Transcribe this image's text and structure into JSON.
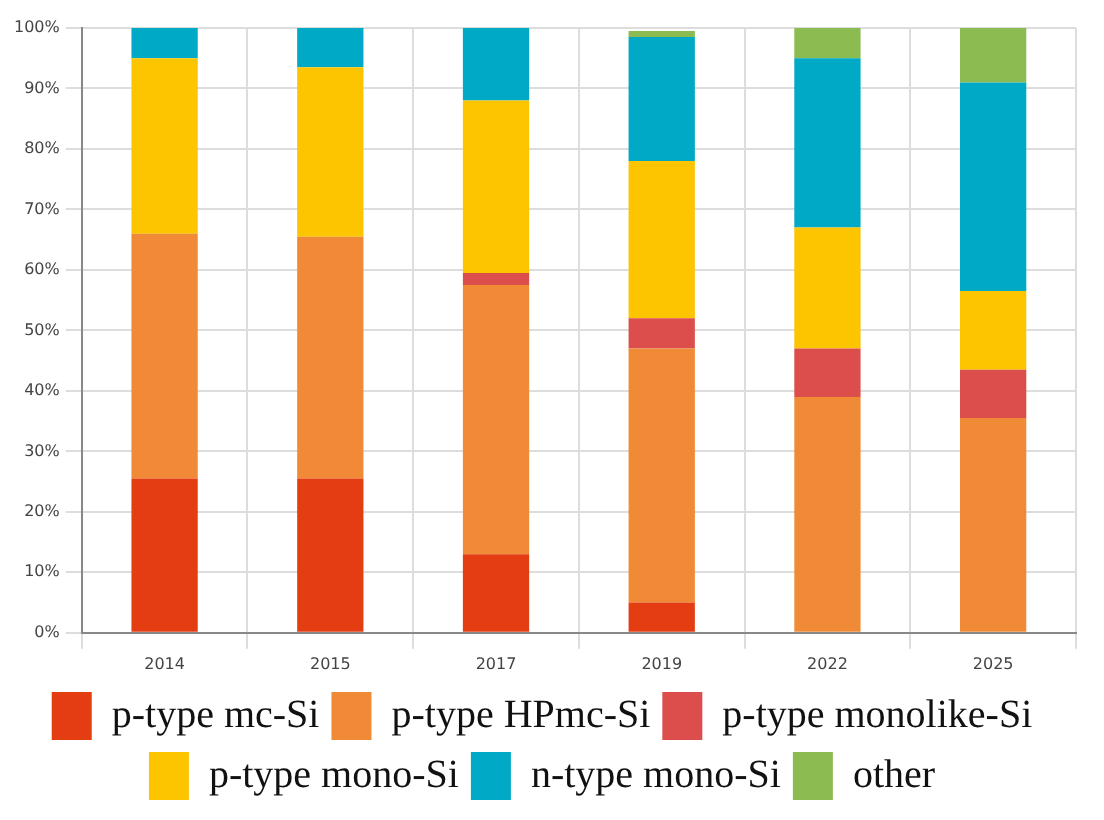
{
  "chart_data": {
    "type": "bar",
    "stacked": true,
    "categories": [
      "2014",
      "2015",
      "2017",
      "2019",
      "2022",
      "2025"
    ],
    "series": [
      {
        "name": "p-type mc-Si",
        "color": "#e43d12",
        "values": [
          25.5,
          25.5,
          13,
          5,
          0,
          0
        ]
      },
      {
        "name": "p-type HPmc-Si",
        "color": "#f08a36",
        "values": [
          40.5,
          40,
          44.5,
          42,
          39,
          35.5
        ]
      },
      {
        "name": "p-type monolike-Si",
        "color": "#dc4e4c",
        "values": [
          0,
          0,
          2,
          5,
          8,
          8
        ]
      },
      {
        "name": "p-type mono-Si",
        "color": "#fdc400",
        "values": [
          29,
          28,
          28.5,
          26,
          20,
          13
        ]
      },
      {
        "name": "n-type mono-Si",
        "color": "#00a9c6",
        "values": [
          5,
          6.5,
          12,
          20.5,
          28,
          34.5
        ]
      },
      {
        "name": "other",
        "color": "#8cbb52",
        "values": [
          0,
          0,
          0,
          1,
          5,
          9
        ]
      }
    ],
    "ylim": [
      0,
      100
    ],
    "yticks": [
      {
        "value": 0,
        "label": "0%"
      },
      {
        "value": 10,
        "label": "10%"
      },
      {
        "value": 20,
        "label": "20%"
      },
      {
        "value": 30,
        "label": "30%"
      },
      {
        "value": 40,
        "label": "40%"
      },
      {
        "value": 50,
        "label": "50%"
      },
      {
        "value": 60,
        "label": "60%"
      },
      {
        "value": 70,
        "label": "70%"
      },
      {
        "value": 80,
        "label": "80%"
      },
      {
        "value": 90,
        "label": "90%"
      },
      {
        "value": 100,
        "label": "100%"
      }
    ],
    "grid": true,
    "legend": "bottom"
  }
}
